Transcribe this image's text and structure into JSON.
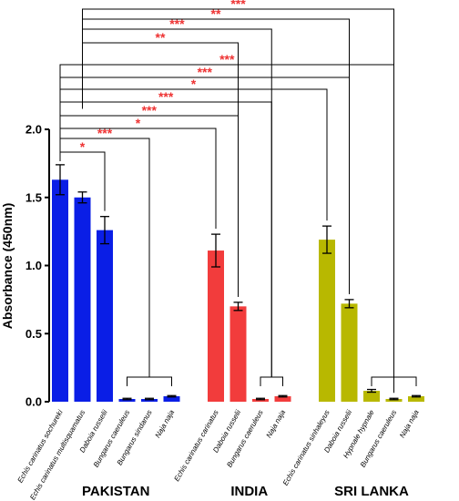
{
  "chart_data": {
    "type": "bar",
    "ylabel": "Absorbance (450nm)",
    "ylim": [
      0,
      2.0
    ],
    "yticks": [
      "0.0",
      "0.5",
      "1.0",
      "1.5",
      "2.0"
    ],
    "grid": false,
    "colors": {
      "PAKISTAN": "#0a1ee6",
      "INDIA": "#f23c3c",
      "SRI LANKA": "#b8b800",
      "significance": "#ee3333"
    },
    "groups": [
      {
        "name": "PAKISTAN",
        "bars": [
          {
            "category": "Echis carinatus sochureki",
            "value": 1.63,
            "error": 0.11
          },
          {
            "category": "Echis carinatus multisquamatus",
            "value": 1.5,
            "error": 0.04
          },
          {
            "category": "Daboia russelii",
            "value": 1.26,
            "error": 0.1
          },
          {
            "category": "Bungarus caeruleus",
            "value": 0.02,
            "error": 0.005
          },
          {
            "category": "Bungarus sindanus",
            "value": 0.02,
            "error": 0.005
          },
          {
            "category": "Naja naja",
            "value": 0.04,
            "error": 0.005
          }
        ]
      },
      {
        "name": "INDIA",
        "bars": [
          {
            "category": "Echis carinatus carinatus",
            "value": 1.11,
            "error": 0.12
          },
          {
            "category": "Daboia russelii",
            "value": 0.7,
            "error": 0.03
          },
          {
            "category": "Bungarus caeruleus",
            "value": 0.02,
            "error": 0.005
          },
          {
            "category": "Naja naja",
            "value": 0.04,
            "error": 0.005
          }
        ]
      },
      {
        "name": "SRI LANKA",
        "bars": [
          {
            "category": "Echis carinatus sinhaleyus",
            "value": 1.19,
            "error": 0.1
          },
          {
            "category": "Daboia russelii",
            "value": 0.72,
            "error": 0.03
          },
          {
            "category": "Hypnale hypnale",
            "value": 0.08,
            "error": 0.01
          },
          {
            "category": "Bungarus caeruleus",
            "value": 0.02,
            "error": 0.005
          },
          {
            "category": "Naja naja",
            "value": 0.04,
            "error": 0.005
          }
        ]
      }
    ],
    "significance": [
      {
        "from": 0,
        "to": 2,
        "label": "*"
      },
      {
        "from": 0,
        "to": 3,
        "label": "***"
      },
      {
        "from": 0,
        "to": 6,
        "label": "*"
      },
      {
        "from": 0,
        "to": 7,
        "label": "***"
      },
      {
        "from": 0,
        "to": 8,
        "label": "***"
      },
      {
        "from": 0,
        "to": 10,
        "label": "*"
      },
      {
        "from": 0,
        "to": 11,
        "label": "***"
      },
      {
        "from": 0,
        "to": 12,
        "label": "***"
      },
      {
        "from": 1,
        "to": 7,
        "label": "**"
      },
      {
        "from": 1,
        "to": 8,
        "label": "***"
      },
      {
        "from": 1,
        "to": 11,
        "label": "**"
      },
      {
        "from": 1,
        "to": 13,
        "label": "***"
      }
    ]
  }
}
